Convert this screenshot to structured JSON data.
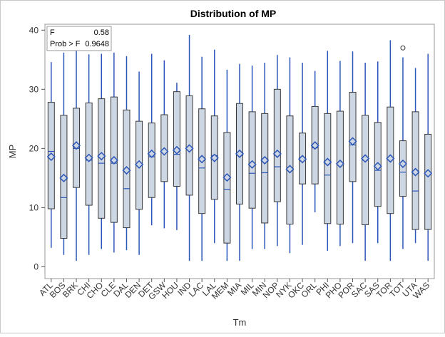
{
  "chart_data": {
    "type": "box",
    "title": "Distribution of MP",
    "xlabel": "Tm",
    "ylabel": "MP",
    "ylim": [
      -2,
      41
    ],
    "yticks": [
      0,
      10,
      20,
      30,
      40
    ],
    "grid": false,
    "colors": {
      "box_fill": "#cdd6e3",
      "box_edge": "#3a3a3a",
      "whisker": "#2b55b8",
      "mean_marker": "#2b55b8",
      "frame": "#9a9a9a"
    },
    "stats": {
      "F_label": "F",
      "F_value": "0.58",
      "p_label": "Prob > F",
      "p_value": "0.9648"
    },
    "categories": [
      "ATL",
      "BOS",
      "BRK",
      "CHI",
      "CHO",
      "CLE",
      "DAL",
      "DEN",
      "DET",
      "GSW",
      "HOU",
      "IND",
      "LAC",
      "LAL",
      "MEM",
      "MIA",
      "MIL",
      "MIN",
      "NOP",
      "NYK",
      "OKC",
      "ORL",
      "PHI",
      "PHO",
      "POR",
      "SAC",
      "SAS",
      "TOR",
      "TOT",
      "UTA",
      "WAS"
    ],
    "boxes": [
      {
        "min": 3.2,
        "q1": 9.8,
        "median": 19.5,
        "q3": 27.8,
        "max": 34.6,
        "mean": 18.6
      },
      {
        "min": 2.0,
        "q1": 4.8,
        "median": 11.7,
        "q3": 25.6,
        "max": 36.2,
        "mean": 15.0
      },
      {
        "min": 1.0,
        "q1": 13.4,
        "median": 20.0,
        "q3": 26.8,
        "max": 37.2,
        "mean": 20.5
      },
      {
        "min": 2.0,
        "q1": 10.4,
        "median": 18.0,
        "q3": 27.7,
        "max": 35.9,
        "mean": 18.4
      },
      {
        "min": 3.0,
        "q1": 8.2,
        "median": 17.5,
        "q3": 28.4,
        "max": 36.0,
        "mean": 18.7
      },
      {
        "min": 2.4,
        "q1": 7.5,
        "median": 17.5,
        "q3": 28.7,
        "max": 36.2,
        "mean": 18.0
      },
      {
        "min": 2.8,
        "q1": 6.6,
        "median": 13.2,
        "q3": 26.5,
        "max": 35.6,
        "mean": 16.3
      },
      {
        "min": 2.0,
        "q1": 9.7,
        "median": 17.1,
        "q3": 24.6,
        "max": 33.0,
        "mean": 17.3
      },
      {
        "min": 7.0,
        "q1": 11.7,
        "median": 18.6,
        "q3": 24.3,
        "max": 36.0,
        "mean": 19.1
      },
      {
        "min": 6.5,
        "q1": 14.4,
        "median": 19.6,
        "q3": 25.7,
        "max": 34.9,
        "mean": 19.5
      },
      {
        "min": 6.2,
        "q1": 13.6,
        "median": 19.0,
        "q3": 29.6,
        "max": 31.1,
        "mean": 19.7
      },
      {
        "min": 1.0,
        "q1": 12.1,
        "median": 20.0,
        "q3": 28.9,
        "max": 39.2,
        "mean": 20.0
      },
      {
        "min": 1.0,
        "q1": 9.0,
        "median": 16.7,
        "q3": 26.7,
        "max": 35.5,
        "mean": 18.2
      },
      {
        "min": 4.0,
        "q1": 11.4,
        "median": 18.8,
        "q3": 25.5,
        "max": 36.7,
        "mean": 18.4
      },
      {
        "min": 1.0,
        "q1": 4.0,
        "median": 13.1,
        "q3": 22.7,
        "max": 33.3,
        "mean": 15.1
      },
      {
        "min": 1.0,
        "q1": 10.6,
        "median": 19.2,
        "q3": 27.6,
        "max": 34.3,
        "mean": 19.1
      },
      {
        "min": 3.0,
        "q1": 9.9,
        "median": 15.8,
        "q3": 26.2,
        "max": 34.0,
        "mean": 17.3
      },
      {
        "min": 3.0,
        "q1": 7.4,
        "median": 15.9,
        "q3": 25.9,
        "max": 34.5,
        "mean": 18.0
      },
      {
        "min": 3.5,
        "q1": 11.0,
        "median": 16.9,
        "q3": 30.0,
        "max": 35.8,
        "mean": 19.1
      },
      {
        "min": 2.3,
        "q1": 7.2,
        "median": 16.5,
        "q3": 25.5,
        "max": 35.4,
        "mean": 16.5
      },
      {
        "min": 3.7,
        "q1": 14.0,
        "median": 18.0,
        "q3": 22.6,
        "max": 34.5,
        "mean": 18.2
      },
      {
        "min": 9.2,
        "q1": 14.0,
        "median": 20.1,
        "q3": 27.1,
        "max": 33.1,
        "mean": 20.5
      },
      {
        "min": 2.7,
        "q1": 7.3,
        "median": 15.5,
        "q3": 25.9,
        "max": 36.5,
        "mean": 17.7
      },
      {
        "min": 3.5,
        "q1": 7.2,
        "median": 17.3,
        "q3": 26.3,
        "max": 34.8,
        "mean": 17.4
      },
      {
        "min": 4.0,
        "q1": 14.4,
        "median": 20.6,
        "q3": 29.5,
        "max": 36.4,
        "mean": 21.2
      },
      {
        "min": 1.0,
        "q1": 7.1,
        "median": 18.0,
        "q3": 25.6,
        "max": 34.5,
        "mean": 18.3
      },
      {
        "min": 4.0,
        "q1": 10.2,
        "median": 16.3,
        "q3": 24.4,
        "max": 34.7,
        "mean": 17.0
      },
      {
        "min": 1.0,
        "q1": 9.0,
        "median": 18.2,
        "q3": 27.0,
        "max": 38.3,
        "mean": 18.3
      },
      {
        "min": 3.0,
        "q1": 11.9,
        "median": 16.0,
        "q3": 21.3,
        "max": 35.4,
        "mean": 17.4,
        "outliers": [
          37.0
        ]
      },
      {
        "min": 4.0,
        "q1": 6.3,
        "median": 12.8,
        "q3": 26.2,
        "max": 33.6,
        "mean": 16.0
      },
      {
        "min": 1.0,
        "q1": 6.3,
        "median": 15.7,
        "q3": 22.4,
        "max": 36.0,
        "mean": 15.8
      }
    ]
  }
}
